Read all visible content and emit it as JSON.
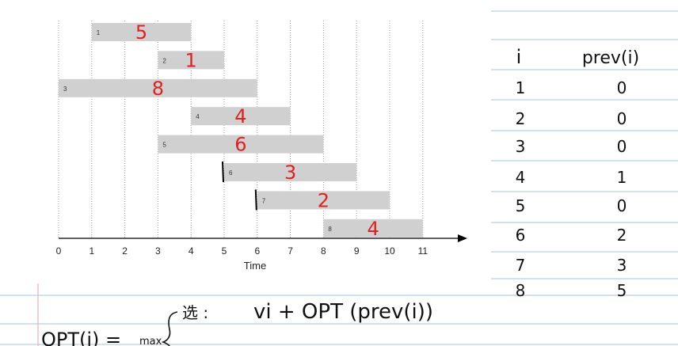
{
  "chart": {
    "type": "gantt",
    "xlabel": "Time",
    "xlim": [
      0,
      12
    ],
    "ticks": [
      "0",
      "1",
      "2",
      "3",
      "4",
      "5",
      "6",
      "7",
      "8",
      "9",
      "10",
      "11"
    ],
    "bar_color": "#d0d0d0",
    "annotation_color": "#e02020",
    "jobs": [
      {
        "id": "1",
        "start": 1,
        "end": 4,
        "weight": "5"
      },
      {
        "id": "2",
        "start": 3,
        "end": 5,
        "weight": "1"
      },
      {
        "id": "3",
        "start": 0,
        "end": 6,
        "weight": "8"
      },
      {
        "id": "4",
        "start": 4,
        "end": 7,
        "weight": "4"
      },
      {
        "id": "5",
        "start": 3,
        "end": 8,
        "weight": "6"
      },
      {
        "id": "6",
        "start": 5,
        "end": 9,
        "weight": "3"
      },
      {
        "id": "7",
        "start": 6,
        "end": 10,
        "weight": "2"
      },
      {
        "id": "8",
        "start": 8,
        "end": 11,
        "weight": "4"
      }
    ],
    "prev_markers": [
      5,
      6
    ]
  },
  "prev_table": {
    "headers": [
      "i",
      "prev(i)"
    ],
    "rows": [
      [
        "1",
        "0"
      ],
      [
        "2",
        "0"
      ],
      [
        "3",
        "0"
      ],
      [
        "4",
        "1"
      ],
      [
        "5",
        "0"
      ],
      [
        "6",
        "2"
      ],
      [
        "7",
        "3"
      ],
      [
        "8",
        "5"
      ]
    ]
  },
  "formula": {
    "lhs": "OPT(i) =",
    "max": "max",
    "choose_label": "选 :",
    "choose_expr": "vi + OPT (prev(i))"
  }
}
